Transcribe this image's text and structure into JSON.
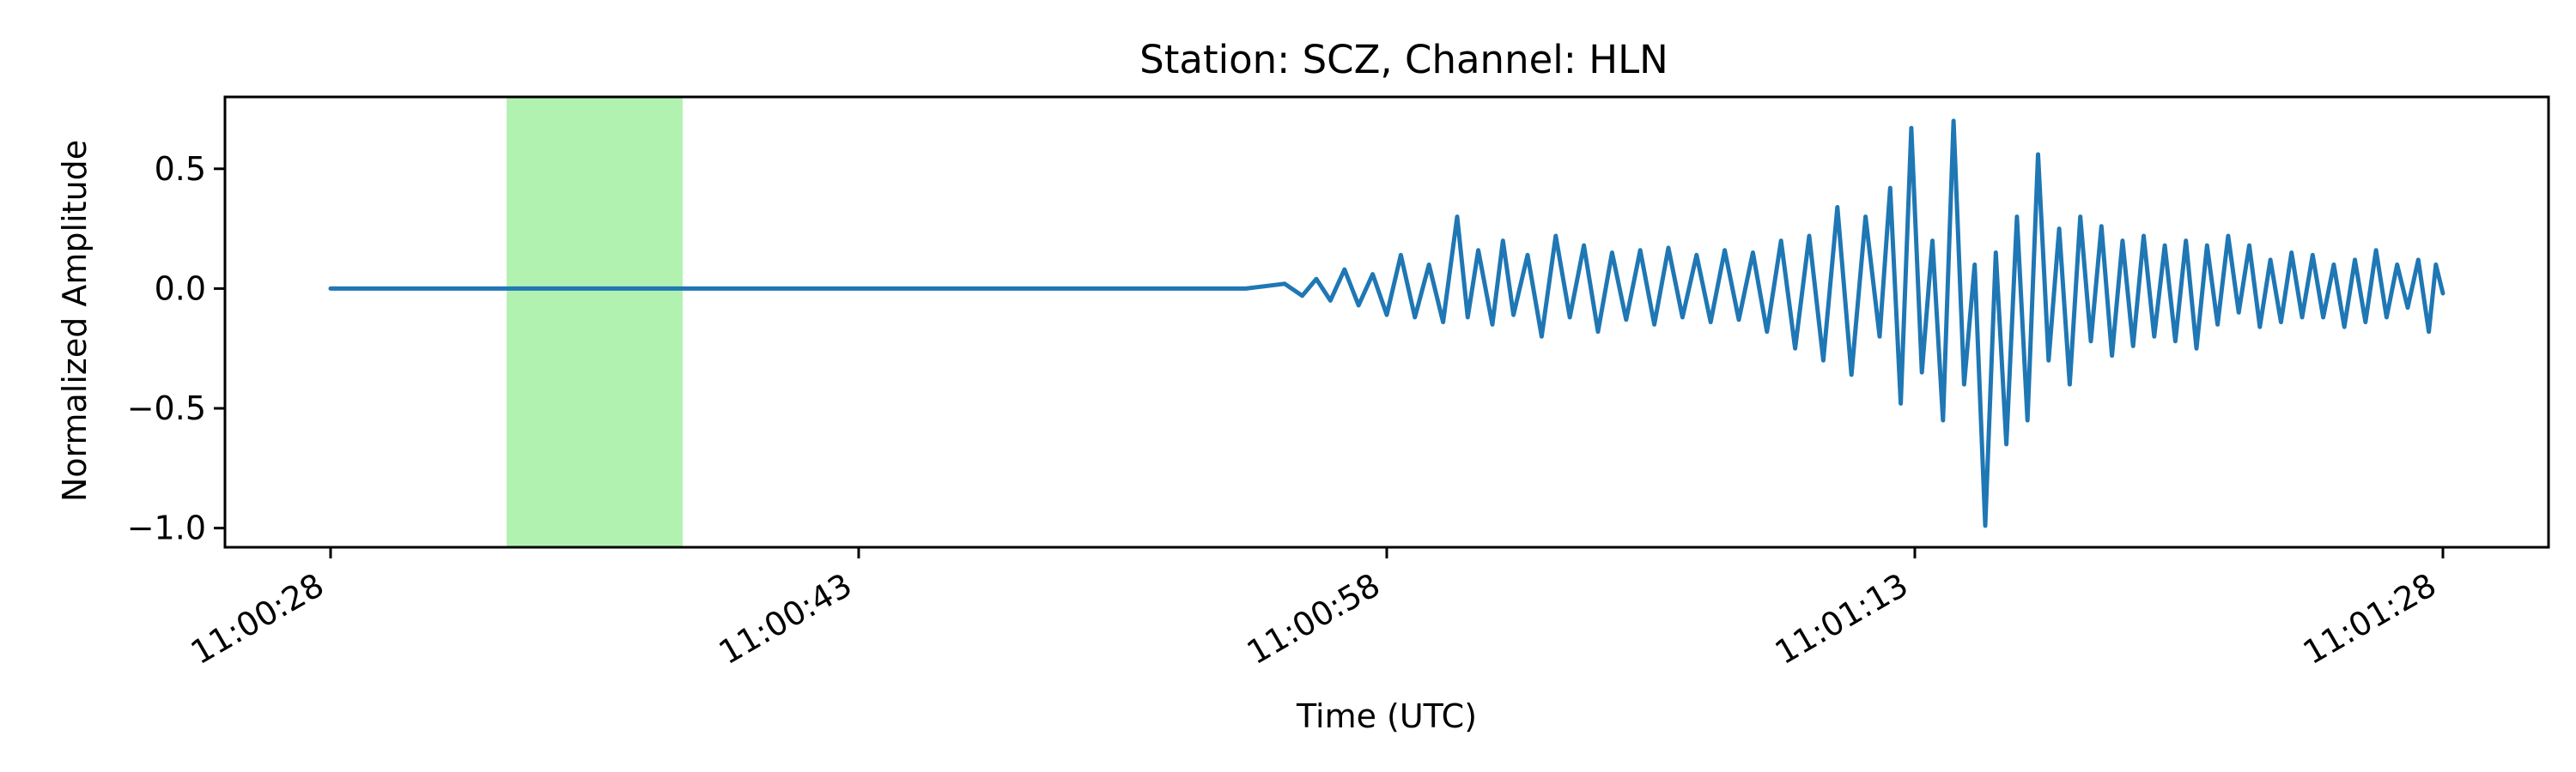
{
  "chart_data": {
    "type": "line",
    "title": "Station: SCZ, Channel: HLN",
    "xlabel": "Time (UTC)",
    "ylabel": "Normalized Amplitude",
    "x_unit": "seconds",
    "xlim": [
      -3,
      63
    ],
    "ylim": [
      -1.08,
      0.8
    ],
    "x_ticks": [
      {
        "value": 0,
        "label": "11:00:28"
      },
      {
        "value": 15,
        "label": "11:00:43"
      },
      {
        "value": 30,
        "label": "11:00:58"
      },
      {
        "value": 45,
        "label": "11:01:13"
      },
      {
        "value": 60,
        "label": "11:01:28"
      }
    ],
    "y_ticks": [
      {
        "value": 0.5,
        "label": "0.5"
      },
      {
        "value": 0.0,
        "label": "0.0"
      },
      {
        "value": -0.5,
        "label": "−0.5"
      },
      {
        "value": -1.0,
        "label": "−1.0"
      }
    ],
    "highlight_span": {
      "x0": 5,
      "x1": 10,
      "color": "#b2f2b1"
    },
    "grid": false,
    "series": [
      {
        "color": "#1f77b4",
        "x": [
          0,
          26.0,
          27.1,
          27.6,
          28.0,
          28.4,
          28.8,
          29.2,
          29.6,
          30.0,
          30.4,
          30.8,
          31.2,
          31.6,
          32.0,
          32.3,
          32.6,
          33.0,
          33.3,
          33.6,
          34.0,
          34.4,
          34.8,
          35.2,
          35.6,
          36.0,
          36.4,
          36.8,
          37.2,
          37.6,
          38.0,
          38.4,
          38.8,
          39.2,
          39.6,
          40.0,
          40.4,
          40.8,
          41.2,
          41.6,
          42.0,
          42.4,
          42.8,
          43.2,
          43.6,
          44.0,
          44.3,
          44.6,
          44.9,
          45.2,
          45.5,
          45.8,
          46.1,
          46.4,
          46.7,
          47.0,
          47.3,
          47.6,
          47.9,
          48.2,
          48.5,
          48.8,
          49.1,
          49.4,
          49.7,
          50.0,
          50.3,
          50.6,
          50.9,
          51.2,
          51.5,
          51.8,
          52.1,
          52.4,
          52.7,
          53.0,
          53.3,
          53.6,
          53.9,
          54.2,
          54.5,
          54.8,
          55.1,
          55.4,
          55.7,
          56.0,
          56.3,
          56.6,
          56.9,
          57.2,
          57.5,
          57.8,
          58.1,
          58.4,
          58.7,
          59.0,
          59.3,
          59.6,
          59.8,
          60.0
        ],
        "y": [
          0.0,
          0.0,
          0.02,
          -0.03,
          0.04,
          -0.05,
          0.08,
          -0.07,
          0.06,
          -0.11,
          0.14,
          -0.12,
          0.1,
          -0.14,
          0.3,
          -0.12,
          0.16,
          -0.15,
          0.2,
          -0.11,
          0.14,
          -0.2,
          0.22,
          -0.12,
          0.18,
          -0.18,
          0.15,
          -0.13,
          0.16,
          -0.15,
          0.17,
          -0.12,
          0.14,
          -0.14,
          0.16,
          -0.13,
          0.15,
          -0.18,
          0.2,
          -0.25,
          0.22,
          -0.3,
          0.34,
          -0.36,
          0.3,
          -0.2,
          0.42,
          -0.48,
          0.67,
          -0.35,
          0.2,
          -0.55,
          0.7,
          -0.4,
          0.1,
          -0.99,
          0.15,
          -0.65,
          0.3,
          -0.55,
          0.56,
          -0.3,
          0.25,
          -0.4,
          0.3,
          -0.22,
          0.26,
          -0.28,
          0.2,
          -0.24,
          0.22,
          -0.2,
          0.18,
          -0.22,
          0.2,
          -0.25,
          0.18,
          -0.15,
          0.22,
          -0.1,
          0.18,
          -0.16,
          0.12,
          -0.14,
          0.15,
          -0.12,
          0.14,
          -0.12,
          0.1,
          -0.16,
          0.12,
          -0.14,
          0.16,
          -0.12,
          0.1,
          -0.08,
          0.12,
          -0.18,
          0.1,
          -0.02
        ]
      }
    ]
  }
}
